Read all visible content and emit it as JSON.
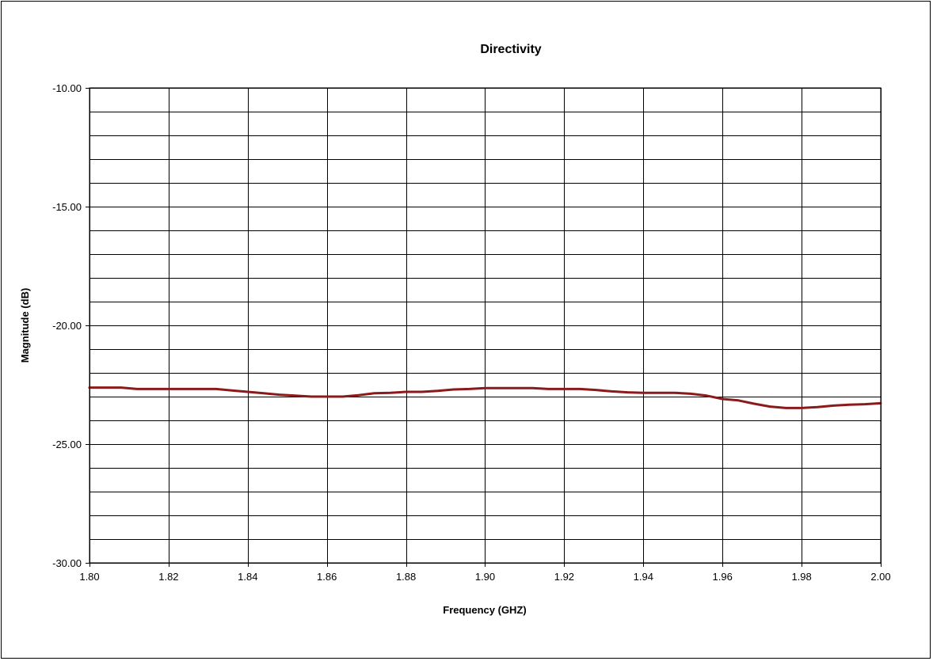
{
  "chart_data": {
    "type": "line",
    "title": "Directivity",
    "xlabel": "Frequency (GHZ)",
    "ylabel": "Magnitude (dB)",
    "xlim": [
      1.8,
      2.0
    ],
    "ylim": [
      -30.0,
      -10.0
    ],
    "x_ticks": [
      1.8,
      1.82,
      1.84,
      1.86,
      1.88,
      1.9,
      1.92,
      1.94,
      1.96,
      1.98,
      2.0
    ],
    "x_tick_labels": [
      "1.80",
      "1.82",
      "1.84",
      "1.86",
      "1.88",
      "1.90",
      "1.92",
      "1.94",
      "1.96",
      "1.98",
      "2.00"
    ],
    "y_ticks": [
      -10,
      -15,
      -20,
      -25,
      -30
    ],
    "y_tick_labels": [
      "-10.00",
      "-15.00",
      "-20.00",
      "-25.00",
      "-30.00"
    ],
    "y_minor_step": 1,
    "grid": true,
    "legend": "none",
    "series": [
      {
        "color": "#8b1a1a",
        "x": [
          1.8,
          1.804,
          1.808,
          1.812,
          1.816,
          1.82,
          1.824,
          1.828,
          1.832,
          1.836,
          1.84,
          1.844,
          1.848,
          1.852,
          1.856,
          1.86,
          1.864,
          1.868,
          1.872,
          1.876,
          1.88,
          1.884,
          1.888,
          1.892,
          1.896,
          1.9,
          1.904,
          1.908,
          1.912,
          1.916,
          1.92,
          1.924,
          1.928,
          1.932,
          1.936,
          1.94,
          1.944,
          1.948,
          1.952,
          1.956,
          1.96,
          1.964,
          1.968,
          1.972,
          1.976,
          1.98,
          1.984,
          1.988,
          1.992,
          1.996,
          2.0
        ],
        "y": [
          -22.62,
          -22.62,
          -22.62,
          -22.68,
          -22.68,
          -22.68,
          -22.68,
          -22.68,
          -22.68,
          -22.74,
          -22.8,
          -22.86,
          -22.92,
          -22.96,
          -23.0,
          -23.0,
          -23.0,
          -22.94,
          -22.86,
          -22.84,
          -22.8,
          -22.8,
          -22.76,
          -22.7,
          -22.68,
          -22.64,
          -22.64,
          -22.64,
          -22.64,
          -22.68,
          -22.68,
          -22.68,
          -22.72,
          -22.78,
          -22.82,
          -22.84,
          -22.84,
          -22.84,
          -22.88,
          -22.96,
          -23.1,
          -23.16,
          -23.3,
          -23.42,
          -23.48,
          -23.48,
          -23.44,
          -23.38,
          -23.34,
          -23.32,
          -23.28
        ]
      }
    ]
  }
}
